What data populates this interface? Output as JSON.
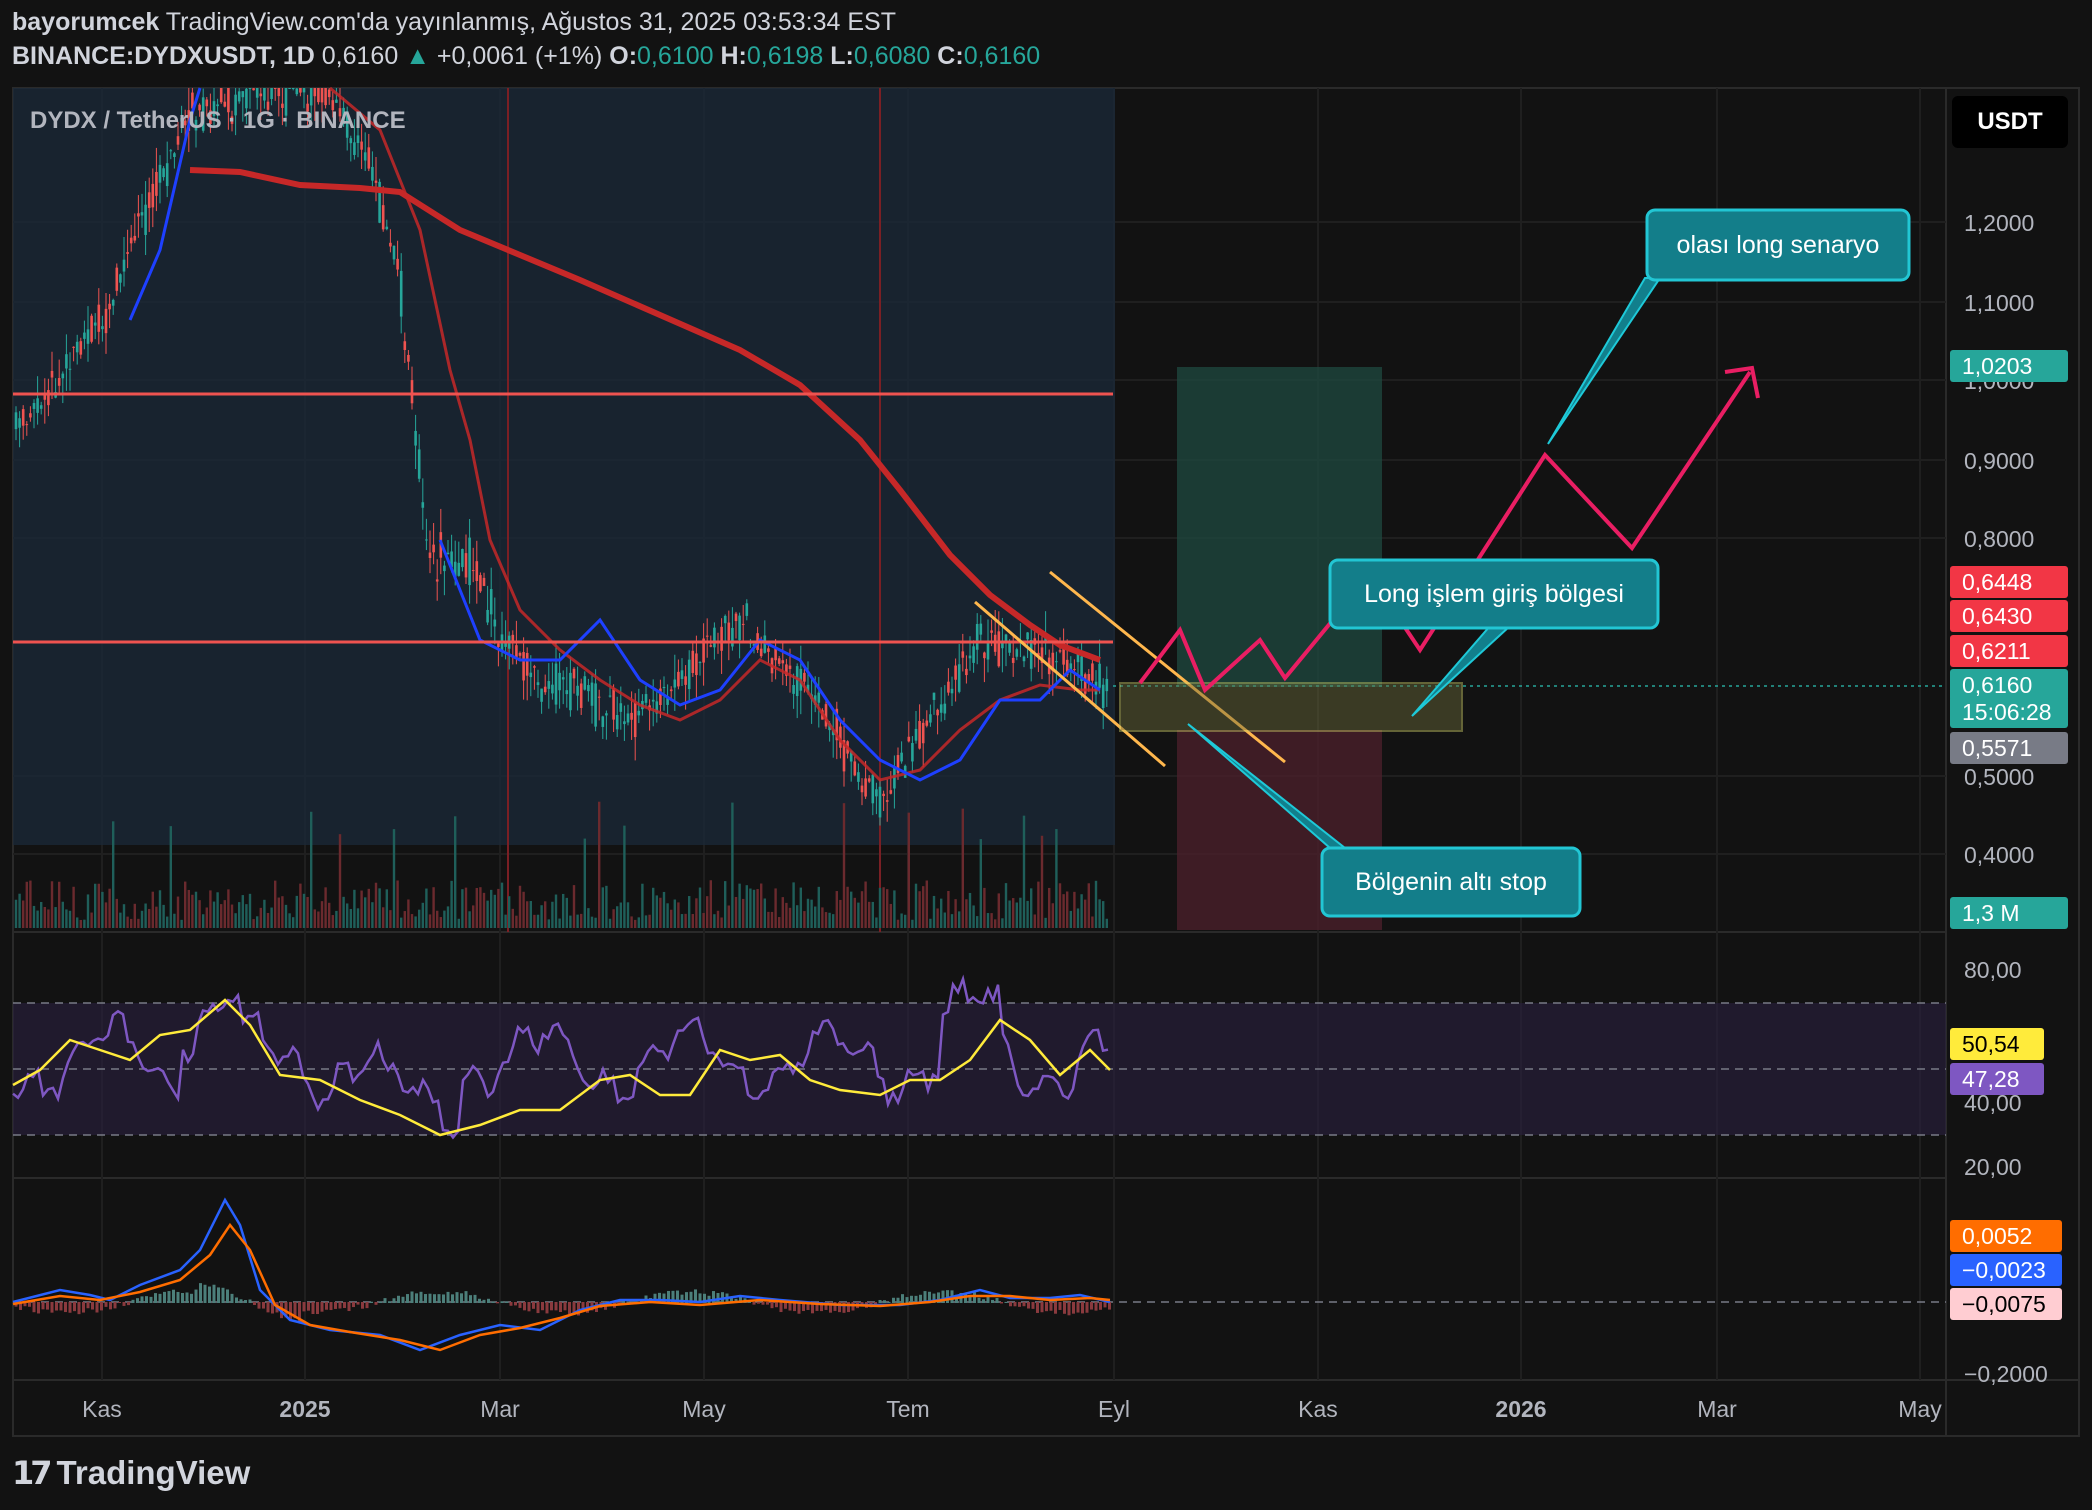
{
  "header": {
    "author": "bayorumcek",
    "published_text": " TradingView.com'da yayınlanmış, Ağustos 31, 2025 03:53:34 EST",
    "symbol": "BINANCE:DYDXUSDT, 1D",
    "last": "0,6160",
    "change_arrow": "▲",
    "change": "+0,0061 (+1%)",
    "o_label": "O:",
    "o": "0,6100",
    "h_label": "H:",
    "h": "0,6198",
    "l_label": "L:",
    "l": "0,6080",
    "c_label": "C:",
    "c": "0,6160"
  },
  "legend": {
    "title": "DYDX / TetherUS · 1G · BINANCE"
  },
  "currency_button": "USDT",
  "price_axis": [
    "1,2000",
    "1,1000",
    "1,0000",
    "0,9000",
    "0,8000",
    "0,5000",
    "0,4000"
  ],
  "price_badges": [
    {
      "label": "1,0203",
      "color": "#26a69a"
    },
    {
      "label": "0,6448",
      "color": "#f23645"
    },
    {
      "label": "0,6430",
      "color": "#f23645"
    },
    {
      "label": "0,6211",
      "color": "#f23645"
    },
    {
      "label": "0,6160",
      "color": "#26a69a"
    },
    {
      "label": "15:06:28",
      "color": "#26a69a"
    },
    {
      "label": "0,5571",
      "color": "#787b86"
    },
    {
      "label": "1,3 M",
      "color": "#26a69a"
    }
  ],
  "rsi_axis": [
    "80,00",
    "40,00",
    "20,00"
  ],
  "rsi_badges": [
    {
      "label": "50,54",
      "color": "#ffeb3b"
    },
    {
      "label": "47,28",
      "color": "#7e57c2"
    }
  ],
  "macd_axis": [
    "−0,2000"
  ],
  "macd_badges": [
    {
      "label": "0,0052",
      "color": "#ff6d00"
    },
    {
      "label": "−0,0023",
      "color": "#2962ff"
    },
    {
      "label": "−0,0075",
      "color": "#ffcdd2"
    }
  ],
  "time_axis": [
    "Kas",
    "2025",
    "Mar",
    "May",
    "Tem",
    "Eyl",
    "Kas",
    "2026",
    "Mar",
    "May"
  ],
  "callouts": {
    "long_scenario": "olası long senaryo",
    "entry_zone": "Long işlem giriş bölgesi",
    "stop": "Bölgenin altı stop"
  },
  "footer": {
    "brand": "TradingView"
  }
}
